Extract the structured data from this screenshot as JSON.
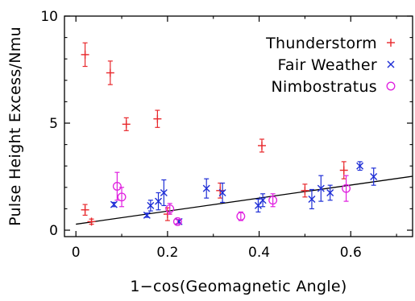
{
  "chart_data": {
    "type": "scatter",
    "xlabel": "1−cos(Geomagnetic Angle)",
    "ylabel": "Pulse Height Excess/Nmu",
    "xlim": [
      -0.025,
      0.735
    ],
    "ylim": [
      -0.3,
      10.0
    ],
    "x_ticks": [
      {
        "value": 0,
        "label": "0"
      },
      {
        "value": 0.2,
        "label": "0.2"
      },
      {
        "value": 0.4,
        "label": "0.4"
      },
      {
        "value": 0.6,
        "label": "0.6"
      }
    ],
    "y_ticks": [
      {
        "value": 0,
        "label": "0"
      },
      {
        "value": 5,
        "label": "5"
      },
      {
        "value": 10,
        "label": "10"
      }
    ],
    "legend_position": "top-right",
    "series": [
      {
        "name": "Thunderstorm",
        "marker": "plus",
        "color": "#e8282c",
        "points": [
          {
            "x": 0.02,
            "y": 8.2,
            "err": 0.55
          },
          {
            "x": 0.075,
            "y": 7.35,
            "err": 0.55
          },
          {
            "x": 0.11,
            "y": 4.95,
            "err": 0.3
          },
          {
            "x": 0.178,
            "y": 5.2,
            "err": 0.4
          },
          {
            "x": 0.406,
            "y": 3.95,
            "err": 0.3
          },
          {
            "x": 0.02,
            "y": 0.95,
            "err": 0.25
          },
          {
            "x": 0.034,
            "y": 0.4,
            "err": 0.12
          },
          {
            "x": 0.2,
            "y": 0.75,
            "err": 0.3
          },
          {
            "x": 0.315,
            "y": 1.85,
            "err": 0.35
          },
          {
            "x": 0.5,
            "y": 1.85,
            "err": 0.3
          },
          {
            "x": 0.585,
            "y": 2.8,
            "err": 0.4
          }
        ]
      },
      {
        "name": "Fair Weather",
        "marker": "cross",
        "color": "#1f2fd6",
        "points": [
          {
            "x": 0.083,
            "y": 1.2,
            "err": 0.1
          },
          {
            "x": 0.155,
            "y": 0.7,
            "err": 0.1
          },
          {
            "x": 0.163,
            "y": 1.15,
            "err": 0.25
          },
          {
            "x": 0.18,
            "y": 1.35,
            "err": 0.4
          },
          {
            "x": 0.192,
            "y": 1.75,
            "err": 0.6
          },
          {
            "x": 0.225,
            "y": 0.4,
            "err": 0.1
          },
          {
            "x": 0.285,
            "y": 1.95,
            "err": 0.45
          },
          {
            "x": 0.32,
            "y": 1.75,
            "err": 0.45
          },
          {
            "x": 0.398,
            "y": 1.15,
            "err": 0.3
          },
          {
            "x": 0.408,
            "y": 1.4,
            "err": 0.3
          },
          {
            "x": 0.515,
            "y": 1.45,
            "err": 0.45
          },
          {
            "x": 0.535,
            "y": 1.95,
            "err": 0.6
          },
          {
            "x": 0.555,
            "y": 1.75,
            "err": 0.35
          },
          {
            "x": 0.62,
            "y": 3.0,
            "err": 0.2
          },
          {
            "x": 0.65,
            "y": 2.5,
            "err": 0.4
          }
        ]
      },
      {
        "name": "Nimbostratus",
        "marker": "circle",
        "color": "#e020e0",
        "points": [
          {
            "x": 0.09,
            "y": 2.05,
            "err": 0.65
          },
          {
            "x": 0.1,
            "y": 1.55,
            "err": 0.45
          },
          {
            "x": 0.205,
            "y": 1.0,
            "err": 0.25
          },
          {
            "x": 0.222,
            "y": 0.4,
            "err": 0.1
          },
          {
            "x": 0.36,
            "y": 0.65,
            "err": 0.2
          },
          {
            "x": 0.43,
            "y": 1.4,
            "err": 0.3
          },
          {
            "x": 0.59,
            "y": 1.95,
            "err": 0.6
          }
        ]
      }
    ],
    "fit_line": {
      "x0": 0.0,
      "y0": 0.28,
      "x1": 0.735,
      "y1": 2.52,
      "color": "#000000"
    }
  }
}
